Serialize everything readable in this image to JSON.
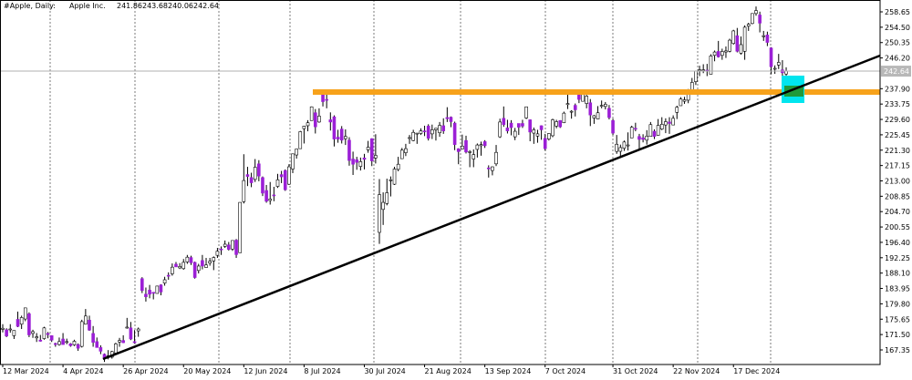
{
  "chart_data": {
    "type": "candlestick",
    "symbol": "#Apple, Daily:",
    "name": "Apple Inc.",
    "up_color": "#ffffff",
    "down_color": "#9b1fd6",
    "ylim": [
      163.41,
      261.85
    ],
    "yticks": [
      167.35,
      {
        "value": 171.5,
        "label": "171.50"
      },
      175.65,
      {
        "value": 179.8,
        "label": "179.80"
      },
      183.95,
      {
        "value": 188.1,
        "label": "188.10"
      },
      192.25,
      {
        "value": 196.4,
        "label": "196.40"
      },
      200.55,
      {
        "value": 204.7,
        "label": "204.70"
      },
      208.85,
      {
        "value": 213,
        "label": "213.00"
      },
      217.15,
      {
        "value": 221.3,
        "label": "221.30"
      },
      225.45,
      {
        "value": 229.6,
        "label": "229.60"
      },
      233.75,
      {
        "value": 237.9,
        "label": "237.90"
      },
      {
        "value": 246.2,
        "label": "246.20"
      },
      250.35,
      {
        "value": 254.5,
        "label": "254.50"
      },
      258.65
    ],
    "categories": [
      "12 Mar 2024",
      null,
      null,
      null,
      null,
      null,
      null,
      null,
      null,
      null,
      null,
      null,
      null,
      null,
      null,
      null,
      "4 Apr 2024",
      null,
      null,
      null,
      null,
      null,
      null,
      null,
      null,
      null,
      null,
      null,
      null,
      null,
      null,
      null,
      "26 Apr 2024",
      null,
      null,
      null,
      null,
      null,
      null,
      null,
      null,
      null,
      null,
      null,
      null,
      null,
      null,
      null,
      "20 May 2024",
      null,
      null,
      null,
      null,
      null,
      null,
      null,
      null,
      null,
      null,
      null,
      null,
      null,
      null,
      null,
      "12 Jun 2024",
      null,
      null,
      null,
      null,
      null,
      null,
      null,
      null,
      null,
      null,
      null,
      null,
      null,
      null,
      null,
      "8 Jul 2024",
      null,
      null,
      null,
      null,
      null,
      null,
      null,
      null,
      null,
      null,
      null,
      null,
      null,
      null,
      null,
      "30 Jul 2024",
      null,
      null,
      null,
      null,
      null,
      null,
      null,
      null,
      null,
      null,
      null,
      null,
      null,
      null,
      null,
      "21 Aug 2024",
      null,
      null,
      null,
      null,
      null,
      null,
      null,
      null,
      null,
      null,
      null,
      null,
      null,
      null,
      null,
      "13 Sep 2024",
      null,
      null,
      null,
      null,
      null,
      null,
      null,
      null,
      null,
      null,
      null,
      null,
      null,
      null,
      null,
      "7 Oct 2024",
      null,
      null,
      null,
      null,
      null,
      null,
      null,
      null,
      null,
      null,
      null,
      null,
      null,
      null,
      null,
      null,
      null,
      "31 Oct 2024",
      null,
      null,
      null,
      null,
      null,
      null,
      null,
      null,
      null,
      null,
      null,
      null,
      null,
      null,
      null,
      "22 Nov 2024",
      null,
      null,
      null,
      null,
      null,
      null,
      null,
      null,
      null,
      null,
      null,
      null,
      null,
      null,
      null,
      "17 Dec 2024",
      null,
      null,
      null,
      null,
      null,
      null,
      null,
      null,
      null,
      null,
      null,
      null,
      null,
      null
    ],
    "ohlc": [
      [
        172.9,
        174.3,
        172.1,
        173.2
      ],
      [
        172.8,
        173.2,
        170.8,
        171.1
      ],
      [
        172.9,
        174.3,
        172.0,
        173.0
      ],
      [
        171.2,
        172.6,
        170.3,
        172.6
      ],
      [
        175.6,
        177.7,
        173.5,
        173.7
      ],
      [
        174.3,
        176.6,
        173.0,
        176.1
      ],
      [
        175.7,
        178.7,
        175.1,
        178.7
      ],
      [
        177.1,
        177.5,
        170.8,
        171.4
      ],
      [
        171.8,
        172.8,
        170.6,
        172.3
      ],
      [
        170.6,
        171.9,
        169.5,
        170.9
      ],
      [
        170.0,
        171.4,
        169.6,
        169.7
      ],
      [
        170.4,
        173.6,
        170.1,
        173.3
      ],
      [
        171.8,
        172.2,
        170.5,
        171.5
      ],
      [
        171.2,
        171.3,
        169.5,
        170.0
      ],
      [
        169.1,
        169.3,
        168.2,
        168.8
      ],
      [
        168.8,
        170.7,
        168.5,
        169.6
      ],
      [
        170.3,
        171.9,
        168.8,
        168.8
      ],
      [
        169.6,
        170.4,
        168.9,
        169.6
      ],
      [
        169.0,
        169.2,
        168.2,
        168.5
      ],
      [
        168.7,
        170.1,
        168.4,
        169.7
      ],
      [
        168.8,
        169.1,
        167.1,
        167.8
      ],
      [
        168.3,
        175.5,
        168.0,
        175.0
      ],
      [
        174.3,
        178.4,
        174.2,
        176.5
      ],
      [
        175.4,
        176.6,
        172.5,
        172.7
      ],
      [
        171.8,
        173.8,
        168.2,
        169.4
      ],
      [
        169.6,
        170.7,
        168.0,
        168.0
      ],
      [
        168.0,
        168.6,
        166.2,
        167.0
      ],
      [
        166.2,
        166.4,
        164.1,
        165.0
      ],
      [
        165.5,
        167.3,
        164.8,
        165.8
      ],
      [
        165.4,
        167.1,
        165.0,
        166.9
      ],
      [
        166.5,
        169.3,
        166.2,
        169.0
      ],
      [
        169.5,
        170.6,
        168.2,
        169.9
      ],
      [
        169.9,
        171.3,
        169.2,
        169.3
      ],
      [
        173.4,
        176.0,
        173.1,
        173.5
      ],
      [
        173.3,
        174.9,
        170.0,
        170.3
      ],
      [
        169.6,
        172.7,
        169.1,
        169.3
      ],
      [
        172.5,
        173.4,
        170.9,
        173.0
      ],
      [
        186.6,
        187.0,
        182.7,
        183.4
      ],
      [
        182.4,
        184.2,
        180.4,
        181.7
      ],
      [
        183.5,
        184.9,
        181.3,
        182.4
      ],
      [
        182.9,
        183.0,
        181.0,
        182.7
      ],
      [
        182.6,
        184.7,
        182.6,
        184.6
      ],
      [
        184.9,
        185.1,
        182.1,
        183.0
      ],
      [
        185.4,
        187.1,
        184.7,
        186.3
      ],
      [
        187.5,
        188.3,
        186.3,
        187.4
      ],
      [
        187.9,
        190.7,
        187.4,
        189.7
      ],
      [
        190.5,
        191.1,
        189.7,
        189.8
      ],
      [
        189.5,
        190.8,
        189.2,
        189.9
      ],
      [
        189.3,
        191.9,
        189.0,
        191.0
      ],
      [
        191.1,
        193.0,
        190.6,
        192.4
      ],
      [
        192.3,
        192.8,
        190.3,
        190.9
      ],
      [
        191.0,
        191.2,
        186.6,
        186.9
      ],
      [
        188.8,
        190.6,
        188.0,
        190.0
      ],
      [
        191.5,
        193.0,
        189.1,
        190.0
      ],
      [
        189.6,
        192.2,
        189.5,
        190.3
      ],
      [
        190.8,
        192.2,
        190.1,
        191.3
      ],
      [
        191.4,
        192.6,
        188.9,
        192.3
      ],
      [
        192.9,
        194.9,
        192.2,
        194.0
      ],
      [
        194.6,
        195.3,
        193.0,
        194.4
      ],
      [
        195.3,
        196.9,
        194.9,
        195.9
      ],
      [
        195.7,
        196.5,
        194.2,
        194.5
      ],
      [
        194.6,
        196.9,
        194.1,
        196.9
      ],
      [
        197.0,
        197.3,
        192.2,
        193.1
      ],
      [
        193.6,
        207.2,
        193.6,
        207.2
      ],
      [
        207.4,
        220.2,
        206.9,
        213.1
      ],
      [
        214.7,
        216.8,
        211.6,
        214.2
      ],
      [
        213.9,
        215.2,
        211.3,
        212.5
      ],
      [
        213.4,
        218.9,
        212.7,
        216.7
      ],
      [
        217.6,
        218.6,
        212.9,
        214.3
      ],
      [
        213.9,
        214.2,
        208.9,
        209.7
      ],
      [
        210.4,
        211.9,
        207.1,
        207.5
      ],
      [
        207.7,
        212.7,
        206.6,
        208.1
      ],
      [
        209.2,
        211.4,
        207.5,
        209.1
      ],
      [
        211.5,
        214.9,
        211.1,
        213.3
      ],
      [
        214.7,
        215.7,
        212.4,
        214.1
      ],
      [
        215.8,
        216.1,
        210.3,
        210.6
      ],
      [
        212.1,
        217.5,
        211.9,
        216.8
      ],
      [
        216.2,
        220.4,
        215.1,
        220.3
      ],
      [
        220.0,
        221.6,
        219.0,
        221.6
      ],
      [
        221.7,
        226.5,
        221.7,
        226.3
      ],
      [
        227.1,
        227.9,
        223.1,
        227.8
      ],
      [
        227.9,
        229.4,
        226.4,
        228.7
      ],
      [
        229.3,
        233.1,
        229.3,
        233.0
      ],
      [
        231.4,
        232.4,
        225.8,
        227.6
      ],
      [
        228.9,
        232.6,
        228.7,
        230.5
      ],
      [
        236.5,
        237.2,
        233.1,
        234.4
      ],
      [
        235.0,
        236.3,
        232.6,
        234.8
      ],
      [
        229.5,
        231.5,
        226.6,
        228.9
      ],
      [
        230.3,
        230.7,
        222.3,
        224.3
      ],
      [
        224.8,
        226.8,
        223.3,
        224.3
      ],
      [
        227.0,
        227.8,
        223.1,
        224.0
      ],
      [
        224.4,
        226.9,
        222.7,
        225.0
      ],
      [
        224.0,
        224.8,
        217.1,
        218.5
      ],
      [
        218.9,
        220.9,
        214.6,
        217.5
      ],
      [
        218.7,
        219.5,
        216.0,
        218.0
      ],
      [
        216.9,
        219.3,
        215.8,
        218.2
      ],
      [
        219.2,
        220.3,
        216.1,
        218.8
      ],
      [
        221.4,
        223.8,
        220.6,
        222.1
      ],
      [
        224.4,
        224.5,
        217.0,
        218.4
      ],
      [
        219.2,
        225.6,
        217.7,
        219.9
      ],
      [
        199.1,
        213.5,
        196.0,
        209.3
      ],
      [
        205.3,
        209.9,
        201.1,
        207.2
      ],
      [
        206.9,
        213.6,
        206.4,
        209.8
      ],
      [
        213.1,
        214.2,
        208.8,
        213.3
      ],
      [
        212.1,
        216.8,
        211.9,
        216.2
      ],
      [
        216.1,
        219.5,
        215.6,
        217.5
      ],
      [
        219.0,
        221.9,
        219.0,
        221.3
      ],
      [
        220.6,
        223.0,
        219.7,
        221.7
      ],
      [
        224.6,
        225.4,
        223.0,
        224.7
      ],
      [
        223.9,
        226.8,
        223.7,
        226.1
      ],
      [
        225.7,
        225.9,
        223.0,
        225.9
      ],
      [
        225.8,
        227.2,
        225.4,
        226.5
      ],
      [
        226.5,
        227.9,
        225.1,
        226.4
      ],
      [
        227.8,
        228.3,
        223.9,
        224.5
      ],
      [
        225.7,
        228.2,
        224.3,
        226.8
      ],
      [
        226.8,
        227.3,
        223.9,
        227.2
      ],
      [
        226.0,
        228.9,
        224.9,
        228.0
      ],
      [
        227.9,
        229.9,
        225.7,
        226.5
      ],
      [
        230.1,
        232.9,
        228.9,
        229.8
      ],
      [
        230.2,
        230.4,
        227.5,
        229.0
      ],
      [
        228.6,
        229.0,
        221.3,
        222.8
      ],
      [
        221.7,
        221.8,
        217.5,
        220.9
      ],
      [
        221.6,
        225.5,
        221.5,
        222.4
      ],
      [
        223.9,
        225.2,
        220.4,
        220.8
      ],
      [
        220.8,
        221.3,
        216.7,
        220.9
      ],
      [
        218.9,
        221.5,
        216.7,
        220.1
      ],
      [
        221.5,
        223.1,
        219.3,
        222.7
      ],
      [
        222.5,
        223.6,
        219.8,
        222.8
      ],
      [
        223.6,
        224.0,
        221.9,
        222.5
      ],
      [
        216.5,
        217.2,
        213.9,
        216.3
      ],
      [
        215.8,
        216.9,
        214.5,
        216.8
      ],
      [
        217.6,
        222.7,
        217.0,
        220.7
      ],
      [
        224.9,
        229.8,
        224.6,
        228.9
      ],
      [
        229.9,
        233.1,
        227.6,
        228.2
      ],
      [
        227.3,
        229.5,
        225.8,
        226.5
      ],
      [
        228.6,
        229.4,
        225.3,
        227.4
      ],
      [
        224.9,
        227.3,
        224.0,
        226.4
      ],
      [
        228.5,
        228.5,
        225.4,
        227.5
      ],
      [
        228.5,
        229.5,
        227.3,
        227.8
      ],
      [
        230.0,
        233.0,
        229.7,
        233.0
      ],
      [
        229.5,
        229.6,
        223.7,
        226.2
      ],
      [
        225.9,
        227.4,
        223.0,
        226.8
      ],
      [
        225.1,
        226.8,
        223.3,
        225.7
      ],
      [
        227.9,
        228.0,
        224.1,
        226.8
      ],
      [
        224.5,
        225.7,
        221.2,
        221.7
      ],
      [
        224.3,
        225.9,
        223.9,
        225.8
      ],
      [
        225.2,
        229.8,
        224.8,
        229.5
      ],
      [
        227.8,
        229.5,
        227.2,
        229.0
      ],
      [
        229.3,
        229.4,
        227.3,
        227.6
      ],
      [
        228.7,
        231.7,
        228.6,
        231.3
      ],
      [
        233.6,
        237.5,
        232.4,
        233.9
      ],
      [
        231.6,
        232.1,
        229.8,
        231.8
      ],
      [
        233.4,
        233.9,
        230.4,
        232.2
      ],
      [
        236.2,
        236.2,
        234.0,
        235.0
      ],
      [
        234.5,
        236.9,
        234.5,
        236.5
      ],
      [
        233.9,
        236.2,
        232.6,
        235.9
      ],
      [
        234.1,
        235.1,
        227.8,
        230.8
      ],
      [
        229.98,
        230.8,
        228.4,
        230.6
      ],
      [
        229.7,
        233.2,
        229.6,
        231.4
      ],
      [
        233.3,
        234.7,
        232.6,
        233.4
      ],
      [
        233.1,
        234.3,
        232.3,
        233.7
      ],
      [
        232.6,
        233.5,
        229.6,
        230.1
      ],
      [
        229.3,
        229.8,
        225.4,
        225.9
      ],
      [
        220.97,
        225.4,
        220.3,
        222.9
      ],
      [
        220.99,
        222.8,
        219.7,
        222.0
      ],
      [
        221.8,
        223.9,
        221.1,
        223.5
      ],
      [
        222.6,
        226.1,
        221.2,
        222.7
      ],
      [
        224.6,
        227.9,
        224.6,
        227.5
      ],
      [
        227.2,
        228.7,
        226.4,
        227.0
      ],
      [
        225.0,
        225.7,
        221.5,
        224.2
      ],
      [
        224.6,
        225.6,
        223.4,
        224.2
      ],
      [
        224.0,
        226.7,
        222.8,
        225.1
      ],
      [
        225.0,
        228.9,
        225.0,
        228.2
      ],
      [
        226.4,
        226.9,
        224.3,
        225.0
      ],
      [
        225.3,
        229.7,
        225.2,
        228.0
      ],
      [
        226.98,
        230.2,
        226.7,
        228.3
      ],
      [
        228.1,
        229.9,
        225.9,
        229.0
      ],
      [
        228.9,
        230.2,
        225.7,
        228.5
      ],
      [
        228.1,
        230.7,
        228.1,
        229.9
      ],
      [
        231.5,
        233.3,
        229.7,
        232.9
      ],
      [
        233.3,
        235.6,
        233.3,
        235.1
      ],
      [
        234.5,
        235.7,
        233.8,
        234.9
      ],
      [
        234.8,
        237.8,
        233.97,
        237.3
      ],
      [
        237.3,
        240.8,
        237.2,
        239.6
      ],
      [
        239.8,
        242.8,
        238.9,
        242.7
      ],
      [
        242.9,
        244.1,
        241.3,
        243.0
      ],
      [
        243.0,
        244.5,
        242.1,
        243.0
      ],
      [
        242.9,
        244.6,
        241.3,
        242.8
      ],
      [
        241.8,
        247.2,
        241.8,
        246.75
      ],
      [
        246.9,
        248.2,
        245.3,
        247.8
      ],
      [
        247.96,
        250.8,
        246.3,
        246.5
      ],
      [
        246.9,
        248.7,
        245.7,
        247.96
      ],
      [
        247.8,
        249.3,
        246.2,
        248.1
      ],
      [
        247.99,
        251.4,
        247.7,
        251.0
      ],
      [
        250.1,
        253.8,
        249.8,
        253.5
      ],
      [
        252.2,
        254.3,
        247.7,
        248.0
      ],
      [
        247.5,
        252.0,
        247.1,
        249.8
      ],
      [
        248.0,
        255.0,
        245.7,
        254.5
      ],
      [
        254.8,
        255.7,
        253.5,
        255.3
      ],
      [
        255.5,
        258.2,
        255.3,
        258.2
      ],
      [
        258.2,
        260.1,
        257.6,
        259.0
      ],
      [
        257.8,
        258.7,
        253.1,
        255.6
      ],
      [
        252.2,
        253.5,
        250.8,
        252.2
      ],
      [
        252.4,
        253.3,
        249.4,
        250.4
      ],
      [
        248.9,
        249.1,
        241.8,
        243.85
      ],
      [
        243.4,
        244.2,
        241.9,
        243.4
      ],
      [
        244.3,
        247.3,
        243.2,
        245.0
      ],
      [
        242.98,
        245.6,
        241.35,
        242.2
      ],
      [
        241.86,
        243.68,
        240.06,
        242.64
      ]
    ]
  }
}
